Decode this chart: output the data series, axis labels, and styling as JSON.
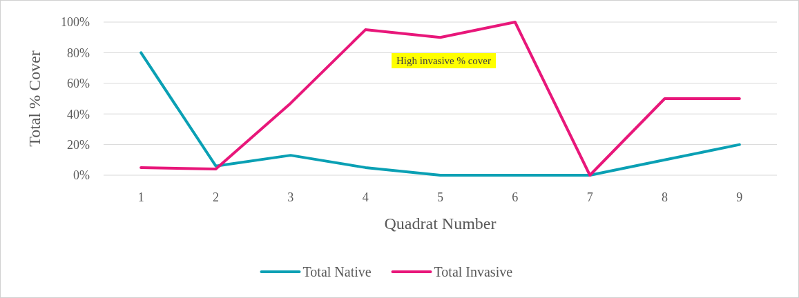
{
  "chart_data": {
    "type": "line",
    "xlabel": "Quadrat Number",
    "ylabel": "Total % Cover",
    "categories": [
      "1",
      "2",
      "3",
      "4",
      "5",
      "6",
      "7",
      "8",
      "9"
    ],
    "series": [
      {
        "name": "Total Native",
        "color": "#0aa0b4",
        "values": [
          80,
          6,
          13,
          5,
          0,
          0,
          0,
          10,
          20
        ]
      },
      {
        "name": "Total Invasive",
        "color": "#e8177a",
        "values": [
          5,
          4,
          47,
          95,
          90,
          100,
          0,
          50,
          50
        ]
      }
    ],
    "ylim": [
      0,
      100
    ],
    "yticks": [
      {
        "value": 0,
        "label": "0%"
      },
      {
        "value": 20,
        "label": "20%"
      },
      {
        "value": 40,
        "label": "40%"
      },
      {
        "value": 60,
        "label": "60%"
      },
      {
        "value": 80,
        "label": "80%"
      },
      {
        "value": 100,
        "label": "100%"
      }
    ],
    "grid": "y",
    "legend": "bottom",
    "marker": "none",
    "line_style": "solid",
    "annotations": [
      "High invasive % cover"
    ]
  }
}
